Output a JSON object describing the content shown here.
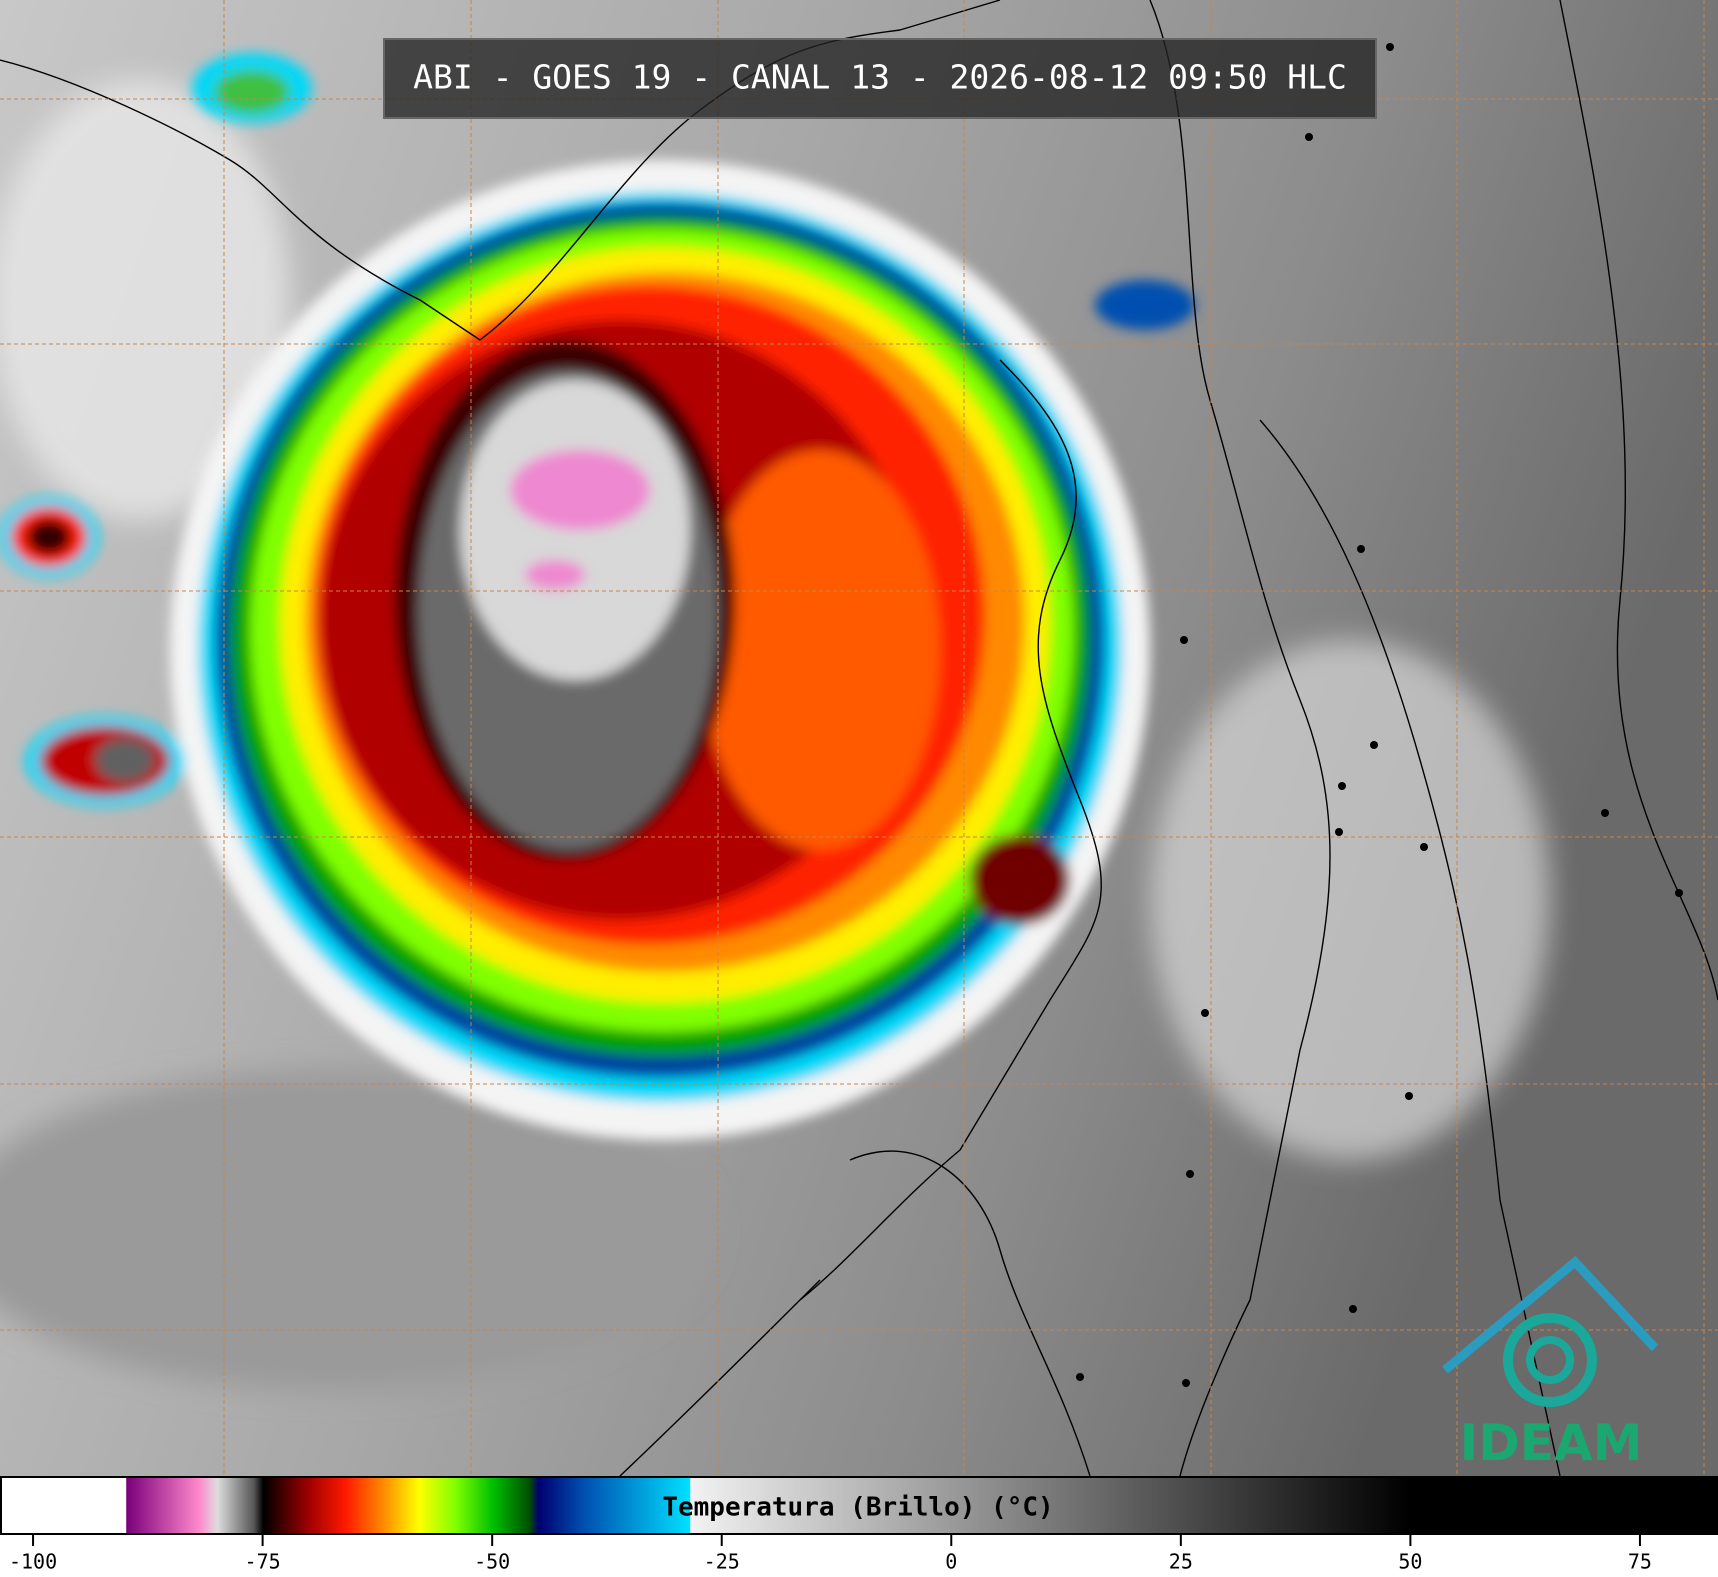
{
  "header": {
    "title": "ABI - GOES 19 - CANAL 13 - 2026-08-12 09:50 HLC"
  },
  "logo": {
    "text": "IDEAM"
  },
  "colorbar": {
    "label": "Temperatura (Brillo) (°C)",
    "lim": [
      -103.6,
      83.5
    ],
    "ticks": [
      -100,
      -75,
      -50,
      -25,
      0,
      25,
      50,
      75
    ],
    "stops": [
      {
        "value": -103.6,
        "color": "#ffffff"
      },
      {
        "value": -90,
        "color": "#ffffff"
      },
      {
        "value": -89.9,
        "color": "#7a007a"
      },
      {
        "value": -82,
        "color": "#ff88cc"
      },
      {
        "value": -80,
        "color": "#dddddd"
      },
      {
        "value": -76,
        "color": "#555555"
      },
      {
        "value": -75,
        "color": "#000000"
      },
      {
        "value": -70,
        "color": "#a00000"
      },
      {
        "value": -66,
        "color": "#ff1a00"
      },
      {
        "value": -62,
        "color": "#ff8800"
      },
      {
        "value": -58,
        "color": "#ffff00"
      },
      {
        "value": -54,
        "color": "#7fff00"
      },
      {
        "value": -50,
        "color": "#00c000"
      },
      {
        "value": -46,
        "color": "#005000"
      },
      {
        "value": -45,
        "color": "#000070"
      },
      {
        "value": -40,
        "color": "#0050b0"
      },
      {
        "value": -28.5,
        "color": "#00e0ff"
      },
      {
        "value": -28.4,
        "color": "#f2f2f2"
      },
      {
        "value": 50,
        "color": "#000000"
      },
      {
        "value": 83.5,
        "color": "#000000"
      }
    ]
  }
}
